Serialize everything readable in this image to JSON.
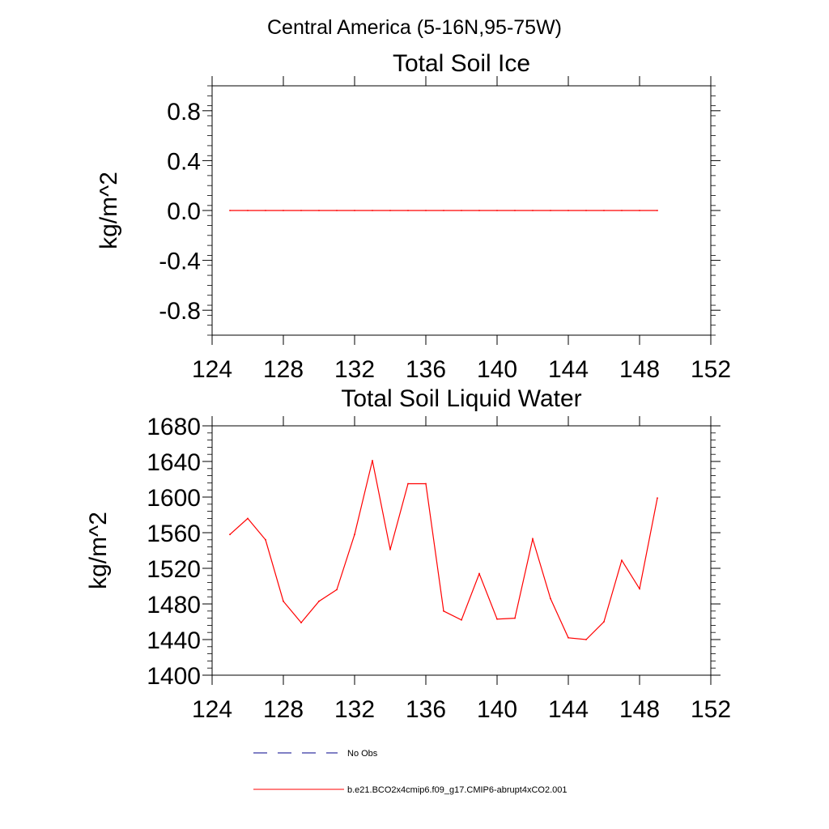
{
  "figure_title": "Central America (5-16N,95-75W)",
  "colors": {
    "model": "#ff0000",
    "obs": "#00008b",
    "axis": "#000000"
  },
  "legend": {
    "items": [
      {
        "label": "No Obs",
        "style": "dashed",
        "color": "#00008b"
      },
      {
        "label": "b.e21.BCO2x4cmip6.f09_g17.CMIP6-abrupt4xCO2.001",
        "style": "solid",
        "color": "#ff0000"
      }
    ]
  },
  "chart_data": [
    {
      "type": "line",
      "title": "Total Soil Ice",
      "xlabel": "",
      "ylabel": "kg/m^2",
      "xlim": [
        124,
        152
      ],
      "ylim": [
        -1.0,
        1.0
      ],
      "xticks": [
        124,
        128,
        132,
        136,
        140,
        144,
        148,
        152
      ],
      "xtick_labels": [
        "124",
        "128",
        "132",
        "136",
        "140",
        "144",
        "148",
        "152"
      ],
      "yticks": [
        0.8,
        0.4,
        0.0,
        -0.4,
        -0.8
      ],
      "ytick_labels": [
        "0.8",
        "0.4",
        "0.0",
        "-0.4",
        "-0.8"
      ],
      "x": [
        125,
        126,
        127,
        128,
        129,
        130,
        131,
        132,
        133,
        134,
        135,
        136,
        137,
        138,
        139,
        140,
        141,
        142,
        143,
        144,
        145,
        146,
        147,
        148,
        149
      ],
      "series": [
        {
          "name": "b.e21.BCO2x4cmip6.f09_g17.CMIP6-abrupt4xCO2.001",
          "values": [
            0,
            0,
            0,
            0,
            0,
            0,
            0,
            0,
            0,
            0,
            0,
            0,
            0,
            0,
            0,
            0,
            0,
            0,
            0,
            0,
            0,
            0,
            0,
            0,
            0
          ]
        }
      ]
    },
    {
      "type": "line",
      "title": "Total Soil Liquid Water",
      "xlabel": "",
      "ylabel": "kg/m^2",
      "xlim": [
        124,
        152
      ],
      "ylim": [
        1400,
        1680
      ],
      "xticks": [
        124,
        128,
        132,
        136,
        140,
        144,
        148,
        152
      ],
      "xtick_labels": [
        "124",
        "128",
        "132",
        "136",
        "140",
        "144",
        "148",
        "152"
      ],
      "yticks": [
        1680,
        1640,
        1600,
        1560,
        1520,
        1480,
        1440,
        1400
      ],
      "ytick_labels": [
        "1680",
        "1640",
        "1600",
        "1560",
        "1520",
        "1480",
        "1440",
        "1400"
      ],
      "x": [
        125,
        126,
        127,
        128,
        129,
        130,
        131,
        132,
        133,
        134,
        135,
        136,
        137,
        138,
        139,
        140,
        141,
        142,
        143,
        144,
        145,
        146,
        147,
        148,
        149
      ],
      "series": [
        {
          "name": "b.e21.BCO2x4cmip6.f09_g17.CMIP6-abrupt4xCO2.001",
          "values": [
            1558,
            1576,
            1552,
            1483,
            1459,
            1483,
            1496,
            1558,
            1641,
            1541,
            1615,
            1615,
            1472,
            1462,
            1514,
            1463,
            1464,
            1553,
            1486,
            1442,
            1440,
            1460,
            1529,
            1497,
            1599
          ]
        }
      ]
    }
  ]
}
